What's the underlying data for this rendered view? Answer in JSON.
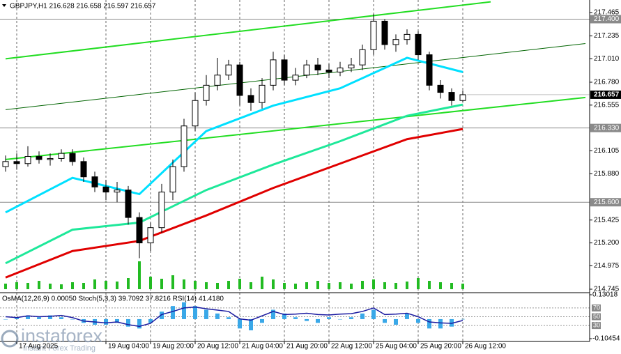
{
  "chart_data": {
    "type": "candlestick",
    "title": "GBPJPY,H1  216.628 216.658 216.597 216.657",
    "open": [
      215.95,
      216.0,
      215.98,
      216.05,
      216.02,
      216.03,
      216.08,
      216.0,
      215.85,
      215.75,
      215.7,
      215.72,
      215.45,
      215.2,
      215.35,
      215.7,
      215.95,
      216.35,
      216.6,
      216.75,
      216.85,
      216.95,
      216.65,
      216.58,
      216.75,
      217.0,
      216.8,
      216.85,
      216.95,
      216.9,
      216.88,
      216.92,
      216.95,
      217.1,
      217.38,
      217.15,
      217.2,
      217.25,
      217.05,
      216.75,
      216.68,
      216.6
    ],
    "high": [
      216.06,
      216.08,
      216.15,
      216.1,
      216.08,
      216.12,
      216.12,
      216.04,
      215.9,
      215.82,
      215.8,
      215.76,
      215.5,
      215.4,
      215.78,
      216.02,
      216.42,
      216.68,
      216.85,
      217.02,
      217.0,
      216.98,
      216.72,
      216.82,
      217.08,
      217.05,
      216.92,
      217.0,
      217.02,
      216.96,
      216.98,
      217.02,
      217.15,
      217.45,
      217.4,
      217.25,
      217.3,
      217.28,
      217.08,
      216.8,
      216.72,
      216.7
    ],
    "low": [
      215.9,
      215.92,
      215.95,
      215.98,
      215.96,
      216.0,
      215.96,
      215.8,
      215.7,
      215.62,
      215.6,
      215.38,
      215.05,
      215.12,
      215.3,
      215.62,
      215.9,
      216.3,
      216.55,
      216.7,
      216.8,
      216.55,
      216.5,
      216.52,
      216.7,
      216.75,
      216.75,
      216.82,
      216.85,
      216.82,
      216.84,
      216.88,
      216.9,
      217.05,
      217.1,
      217.08,
      217.15,
      217.0,
      216.7,
      216.62,
      216.55,
      216.58
    ],
    "close": [
      216.0,
      215.98,
      216.05,
      216.02,
      216.03,
      216.08,
      216.0,
      215.85,
      215.75,
      215.7,
      215.72,
      215.45,
      215.2,
      215.35,
      215.7,
      215.95,
      216.35,
      216.6,
      216.75,
      216.85,
      216.95,
      216.65,
      216.58,
      216.75,
      217.0,
      216.8,
      216.85,
      216.95,
      216.9,
      216.88,
      216.92,
      216.95,
      217.1,
      217.38,
      217.15,
      217.2,
      217.25,
      217.05,
      216.75,
      216.68,
      216.6,
      216.657
    ],
    "ylim": [
      214.745,
      217.465
    ],
    "yticks": [
      217.465,
      217.235,
      {
        "value": 217.01,
        "label": "217.010"
      },
      {
        "value": 216.78,
        "label": "216.780"
      },
      216.555,
      216.105,
      {
        "value": 215.88,
        "label": "215.880"
      },
      215.425,
      {
        "value": 215.2,
        "label": "215.200"
      },
      214.975,
      214.745
    ],
    "xticks": [
      {
        "value": 1,
        "label": "17 Aug 2025"
      },
      {
        "value": 9,
        "label": "19 Aug 04:00"
      },
      {
        "value": 13,
        "label": "19 Aug 20:00"
      },
      {
        "value": 17,
        "label": "20 Aug 12:00"
      },
      {
        "value": 21,
        "label": "21 Aug 04:00"
      },
      {
        "value": 25,
        "label": "21 Aug 20:00"
      },
      {
        "value": 29,
        "label": "22 Aug 12:00"
      },
      {
        "value": 33,
        "label": "25 Aug 04:00"
      },
      {
        "value": 37,
        "label": "25 Aug 20:00"
      },
      {
        "value": 41,
        "label": "26 Aug 12:00"
      }
    ],
    "price_levels": [
      {
        "value": 217.4,
        "label": "217.400"
      },
      {
        "value": 216.33,
        "label": "216.330"
      },
      {
        "value": 215.6,
        "label": "215.600"
      }
    ],
    "current_price": {
      "value": 216.657,
      "label": "216.657"
    },
    "moving_averages": [
      {
        "color": "#00e0ff",
        "x": [
          0,
          6,
          12,
          18,
          24,
          30,
          36,
          41
        ],
        "values": [
          215.5,
          215.84,
          215.68,
          216.3,
          216.55,
          216.72,
          217.02,
          216.88
        ]
      },
      {
        "color": "#1ee89a",
        "x": [
          0,
          6,
          12,
          18,
          24,
          30,
          36,
          41
        ],
        "values": [
          215.0,
          215.33,
          215.4,
          215.72,
          215.97,
          216.2,
          216.45,
          216.56
        ]
      },
      {
        "color": "#e00000",
        "x": [
          0,
          6,
          12,
          18,
          24,
          30,
          36,
          41
        ],
        "values": [
          214.86,
          215.12,
          215.22,
          215.47,
          215.74,
          215.98,
          216.22,
          216.32
        ]
      }
    ],
    "trendlines": [
      {
        "color": "#22dd22",
        "x": [
          0,
          43.5
        ],
        "values": [
          217.01,
          217.57
        ]
      },
      {
        "color": "#006400",
        "x": [
          0,
          52
        ],
        "values": [
          216.51,
          217.16
        ]
      },
      {
        "color": "#22dd22",
        "x": [
          0,
          52
        ],
        "values": [
          216.02,
          216.63
        ]
      }
    ],
    "volume": {
      "color": "#22bb22",
      "ylim": [
        0,
        50
      ],
      "values": [
        8,
        10,
        9,
        12,
        8,
        7,
        10,
        9,
        14,
        12,
        11,
        16,
        40,
        18,
        15,
        20,
        14,
        12,
        10,
        9,
        12,
        15,
        10,
        18,
        14,
        9,
        8,
        10,
        12,
        9,
        10,
        8,
        12,
        14,
        10,
        9,
        11,
        16,
        12,
        10,
        9,
        8
      ]
    },
    "indicator": {
      "title": "OsMA(12,26,9) 0.00050  Stoch(5,3,3) 39.7092 37.8216  RSI(14) 41.4180",
      "ylim": [
        -0.10454,
        0.13018
      ],
      "yticks": [
        0.13018,
        -0.10454
      ],
      "y2lim": [
        0,
        100
      ],
      "y2ticks": [
        70,
        50,
        30
      ],
      "osma": {
        "color": "#3aa8e8",
        "values": [
          0.0,
          0.01,
          0.02,
          0.01,
          0.02,
          0.01,
          0.0,
          -0.02,
          -0.03,
          -0.03,
          -0.02,
          -0.04,
          -0.05,
          -0.02,
          0.04,
          0.07,
          0.09,
          0.07,
          0.05,
          0.03,
          0.01,
          -0.05,
          -0.06,
          -0.02,
          0.05,
          0.03,
          0.01,
          -0.01,
          -0.02,
          0.01,
          0.0,
          0.01,
          0.03,
          0.05,
          -0.02,
          -0.03,
          0.03,
          -0.02,
          -0.05,
          -0.05,
          -0.04,
          0.0005
        ]
      },
      "rsi": {
        "color": "#1a1aa0",
        "axis": "y2",
        "values": [
          50,
          48,
          52,
          50,
          51,
          53,
          48,
          40,
          38,
          36,
          38,
          32,
          28,
          35,
          55,
          62,
          70,
          72,
          68,
          65,
          62,
          45,
          42,
          52,
          62,
          55,
          56,
          58,
          55,
          54,
          56,
          57,
          62,
          70,
          55,
          56,
          58,
          50,
          38,
          36,
          35,
          41.418
        ]
      }
    },
    "watermark": {
      "brand": "instaforex",
      "tagline": "Instant Forex Trading"
    }
  }
}
